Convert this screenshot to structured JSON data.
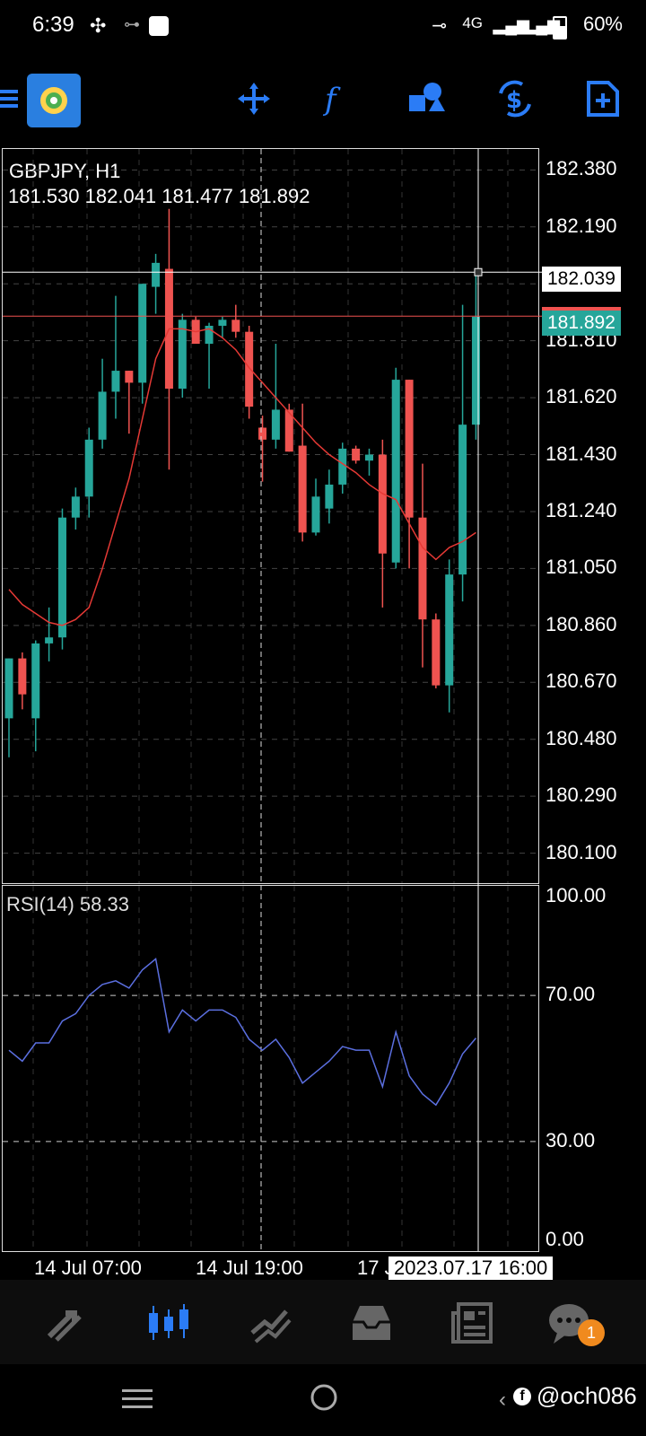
{
  "status_bar": {
    "time": "6:39",
    "network": "4G",
    "battery": "60%"
  },
  "toolbar": {
    "items": [
      "menu-icon",
      "app-logo",
      "crosshair-move-icon",
      "function-icon",
      "objects-icon",
      "timeframe-dollar-icon",
      "new-order-icon"
    ]
  },
  "chart": {
    "symbol_label": "GBPJPY, H1",
    "ohlc_label": "181.530 182.041 181.477 181.892",
    "crosshair_price": "182.039",
    "bid_price": "181.892",
    "rsi_label": "RSI(14) 58.33",
    "crosshair_time": "2023.07.17 16:00",
    "time_labels": [
      "14 Jul 07:00",
      "14 Jul 19:00",
      "17 J"
    ],
    "price_ticks": [
      "182.380",
      "182.190",
      "182.000",
      "181.810",
      "181.620",
      "181.430",
      "181.240",
      "181.050",
      "180.860",
      "180.670",
      "180.480",
      "180.290",
      "180.100"
    ],
    "rsi_ticks": [
      "100.00",
      "70.00",
      "30.00",
      "0.00"
    ],
    "colors": {
      "bull": "#26a69a",
      "bear": "#ef5350",
      "ma": "#e53935",
      "rsi": "#5b6fe0",
      "accent": "#2b7cf6"
    }
  },
  "chart_data": {
    "type": "candlestick",
    "title": "GBPJPY, H1",
    "ylim": [
      180.0,
      182.45
    ],
    "candles": [
      {
        "o": 180.55,
        "h": 180.75,
        "l": 180.42,
        "c": 180.75
      },
      {
        "o": 180.75,
        "h": 180.77,
        "l": 180.58,
        "c": 180.63
      },
      {
        "o": 180.55,
        "h": 180.81,
        "l": 180.44,
        "c": 180.8
      },
      {
        "o": 180.8,
        "h": 180.92,
        "l": 180.74,
        "c": 180.82
      },
      {
        "o": 180.82,
        "h": 181.25,
        "l": 180.78,
        "c": 181.22
      },
      {
        "o": 181.22,
        "h": 181.32,
        "l": 181.18,
        "c": 181.29
      },
      {
        "o": 181.29,
        "h": 181.52,
        "l": 181.22,
        "c": 181.48
      },
      {
        "o": 181.48,
        "h": 181.75,
        "l": 181.45,
        "c": 181.64
      },
      {
        "o": 181.64,
        "h": 181.96,
        "l": 181.55,
        "c": 181.71
      },
      {
        "o": 181.71,
        "h": 181.71,
        "l": 181.5,
        "c": 181.67
      },
      {
        "o": 181.67,
        "h": 182.0,
        "l": 181.6,
        "c": 182.0
      },
      {
        "o": 181.99,
        "h": 182.1,
        "l": 181.9,
        "c": 182.07
      },
      {
        "o": 182.05,
        "h": 182.25,
        "l": 181.38,
        "c": 181.65
      },
      {
        "o": 181.65,
        "h": 181.9,
        "l": 181.62,
        "c": 181.88
      },
      {
        "o": 181.88,
        "h": 181.89,
        "l": 181.8,
        "c": 181.8
      },
      {
        "o": 181.8,
        "h": 181.87,
        "l": 181.65,
        "c": 181.86
      },
      {
        "o": 181.86,
        "h": 181.89,
        "l": 181.82,
        "c": 181.88
      },
      {
        "o": 181.88,
        "h": 181.93,
        "l": 181.82,
        "c": 181.84
      },
      {
        "o": 181.84,
        "h": 181.86,
        "l": 181.55,
        "c": 181.59
      },
      {
        "o": 181.52,
        "h": 181.56,
        "l": 181.34,
        "c": 181.48
      },
      {
        "o": 181.48,
        "h": 181.8,
        "l": 181.45,
        "c": 181.58
      },
      {
        "o": 181.58,
        "h": 181.6,
        "l": 181.44,
        "c": 181.44
      },
      {
        "o": 181.46,
        "h": 181.6,
        "l": 181.14,
        "c": 181.17
      },
      {
        "o": 181.17,
        "h": 181.35,
        "l": 181.16,
        "c": 181.29
      },
      {
        "o": 181.25,
        "h": 181.38,
        "l": 181.2,
        "c": 181.33
      },
      {
        "o": 181.33,
        "h": 181.47,
        "l": 181.3,
        "c": 181.45
      },
      {
        "o": 181.45,
        "h": 181.46,
        "l": 181.4,
        "c": 181.41
      },
      {
        "o": 181.41,
        "h": 181.45,
        "l": 181.36,
        "c": 181.43
      },
      {
        "o": 181.43,
        "h": 181.48,
        "l": 180.92,
        "c": 181.1
      },
      {
        "o": 181.07,
        "h": 181.72,
        "l": 181.05,
        "c": 181.68
      },
      {
        "o": 181.68,
        "h": 181.68,
        "l": 181.05,
        "c": 181.22
      },
      {
        "o": 181.22,
        "h": 181.4,
        "l": 180.72,
        "c": 180.88
      },
      {
        "o": 180.88,
        "h": 180.9,
        "l": 180.65,
        "c": 180.66
      },
      {
        "o": 180.66,
        "h": 181.08,
        "l": 180.57,
        "c": 181.03
      },
      {
        "o": 181.03,
        "h": 181.93,
        "l": 180.94,
        "c": 181.53
      },
      {
        "o": 181.53,
        "h": 182.04,
        "l": 181.48,
        "c": 181.89
      }
    ],
    "ma": [
      180.98,
      180.93,
      180.9,
      180.87,
      180.86,
      180.88,
      180.92,
      181.05,
      181.2,
      181.35,
      181.55,
      181.75,
      181.85,
      181.85,
      181.84,
      181.85,
      181.82,
      181.78,
      181.72,
      181.67,
      181.62,
      181.57,
      181.52,
      181.47,
      181.43,
      181.4,
      181.37,
      181.33,
      181.3,
      181.28,
      181.2,
      181.12,
      181.08,
      181.12,
      181.14,
      181.17
    ],
    "rsi": {
      "name": "RSI(14)",
      "values": [
        55,
        52,
        57,
        57,
        63,
        65,
        70,
        73,
        74,
        72,
        77,
        80,
        60,
        66,
        63,
        66,
        66,
        64,
        58,
        55,
        58,
        53,
        46,
        49,
        52,
        56,
        55,
        55,
        45,
        60,
        48,
        43,
        40,
        46,
        54,
        58.33
      ],
      "ylim": [
        0,
        100
      ],
      "levels": [
        70,
        30
      ]
    }
  },
  "bottom_nav": {
    "items": [
      "quotes-icon",
      "charts-icon",
      "trade-icon",
      "history-icon",
      "news-icon",
      "messages-icon"
    ],
    "message_badge": "1"
  },
  "system_nav": {
    "watermark": "@och086"
  }
}
